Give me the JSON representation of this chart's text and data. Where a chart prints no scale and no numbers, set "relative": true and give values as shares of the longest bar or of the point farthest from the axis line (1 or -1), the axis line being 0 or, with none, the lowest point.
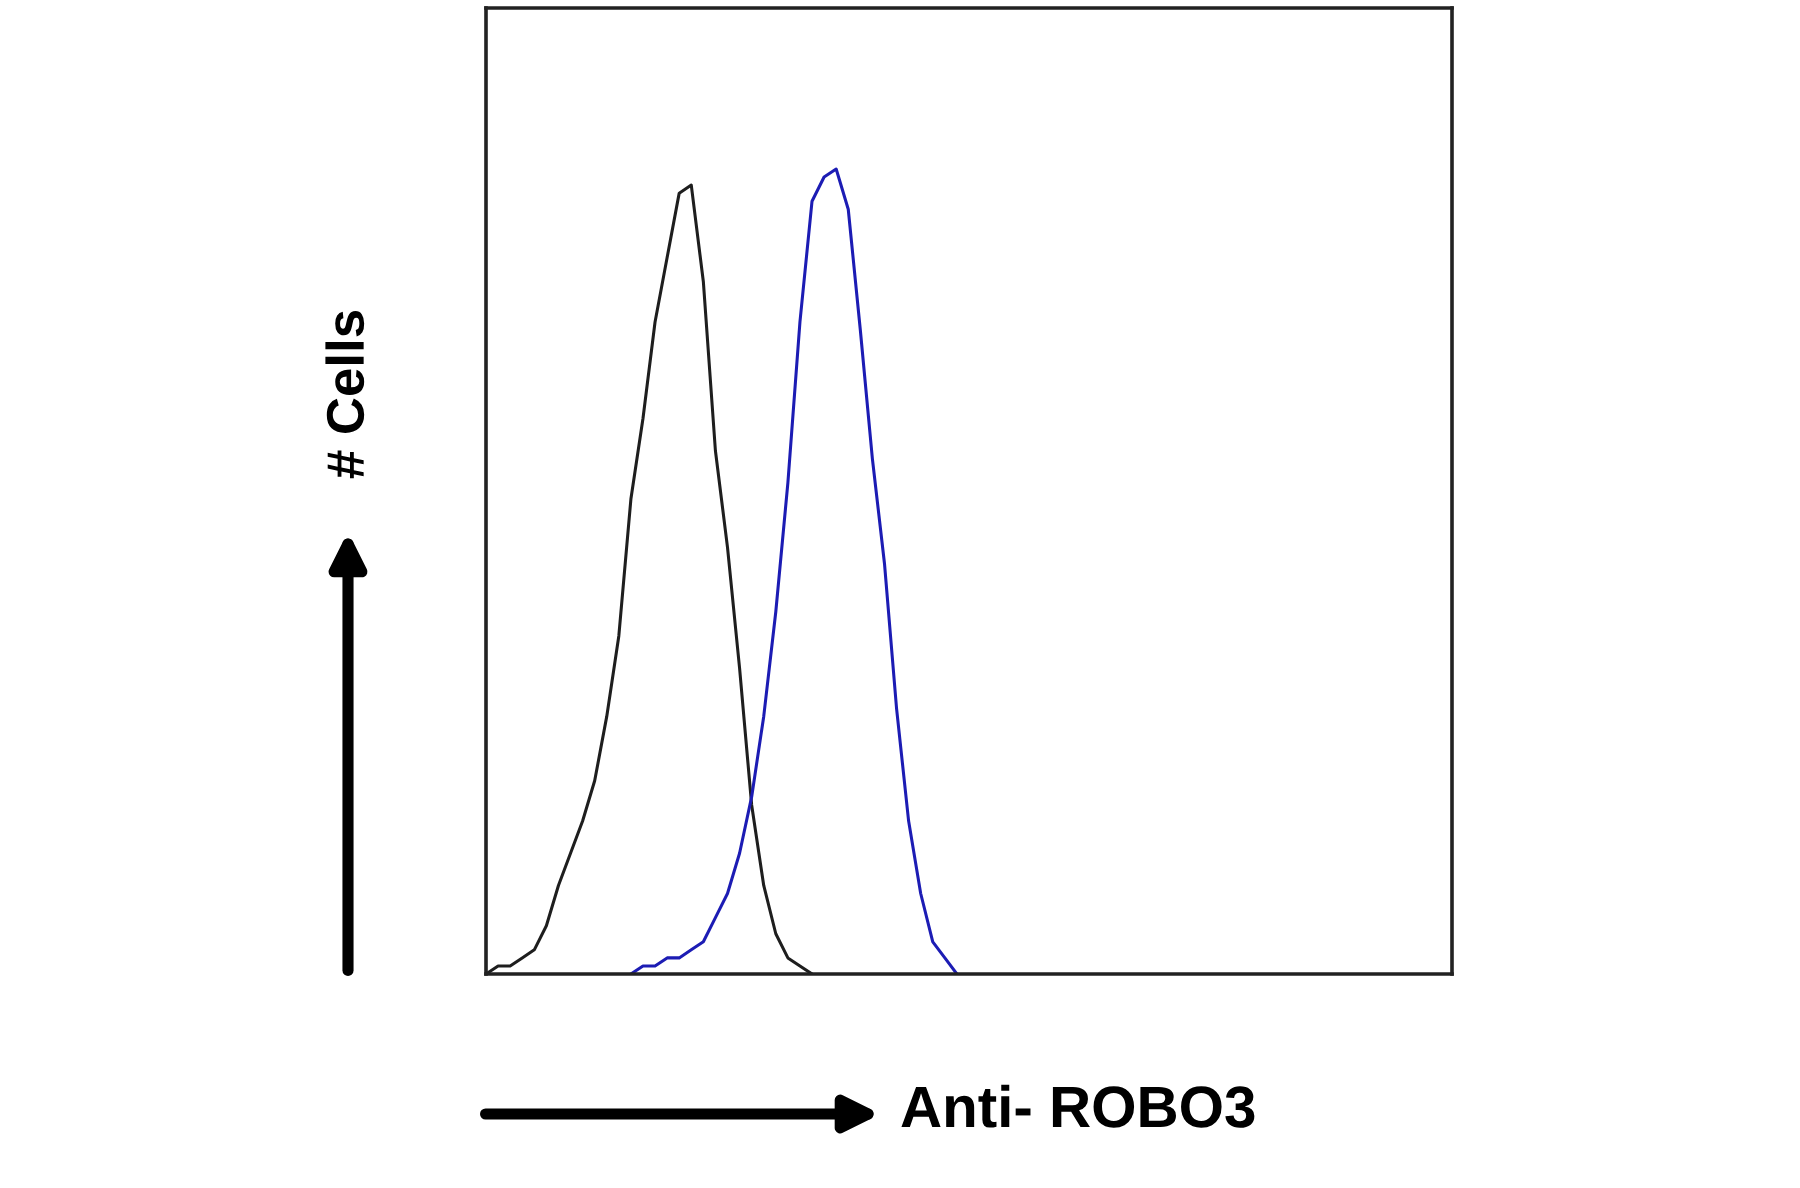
{
  "chart_data": {
    "type": "line",
    "relative": true,
    "xlabel": "Anti- ROBO3",
    "ylabel": "# Cells",
    "grid": false,
    "marker": "none",
    "line_style": "solid",
    "categories": [
      null,
      null,
      null,
      null,
      null,
      null,
      null,
      null,
      null,
      null,
      null,
      null,
      null,
      null,
      null,
      null,
      null,
      null,
      null,
      null,
      null,
      null,
      null,
      null,
      null,
      null,
      null,
      null,
      null,
      null,
      null,
      null,
      null,
      null,
      null,
      null,
      null,
      null,
      null,
      null,
      null,
      null,
      null,
      null,
      null,
      null,
      null,
      null,
      null,
      null,
      null,
      null,
      null,
      null,
      null,
      null,
      null,
      null,
      null,
      null,
      null,
      null,
      null,
      null,
      null,
      null,
      null,
      null,
      null,
      null,
      null,
      null,
      null,
      null,
      null,
      null,
      null,
      null,
      null,
      null,
      null
    ],
    "series": [
      {
        "color": "#1e1e1e",
        "values": [
          0.0,
          0.01,
          0.01,
          0.02,
          0.03,
          0.06,
          0.11,
          0.15,
          0.19,
          0.24,
          0.32,
          0.42,
          0.59,
          0.69,
          0.81,
          0.89,
          0.97,
          0.98,
          0.86,
          0.65,
          0.53,
          0.38,
          0.21,
          0.11,
          0.05,
          0.02,
          0.01,
          0.0,
          null,
          null,
          null,
          null,
          null,
          null,
          null,
          null,
          null,
          null,
          null,
          null,
          null,
          null,
          null,
          null,
          null,
          null,
          null,
          null,
          null,
          null,
          null,
          null,
          null,
          null,
          null,
          null,
          null,
          null,
          null,
          null,
          null,
          null,
          null,
          null,
          null,
          null,
          null,
          null,
          null,
          null,
          null,
          null,
          null,
          null,
          null,
          null,
          null,
          null,
          null,
          null,
          null
        ]
      },
      {
        "color": "#1c1cb4",
        "values": [
          null,
          null,
          null,
          null,
          null,
          null,
          null,
          null,
          null,
          null,
          null,
          null,
          0.0,
          0.01,
          0.01,
          0.02,
          0.02,
          0.03,
          0.04,
          0.07,
          0.1,
          0.15,
          0.22,
          0.32,
          0.45,
          0.61,
          0.81,
          0.96,
          0.99,
          1,
          0.95,
          0.8,
          0.64,
          0.51,
          0.33,
          0.19,
          0.1,
          0.04,
          0.02,
          0.0,
          null,
          null,
          null,
          null,
          null,
          null,
          null,
          null,
          null,
          null,
          null,
          null,
          null,
          null,
          null,
          null,
          null,
          null,
          null,
          null,
          null,
          null,
          null,
          null,
          null,
          null,
          null,
          null,
          null,
          null,
          null,
          null,
          null,
          null,
          null,
          null,
          null,
          null,
          null,
          null,
          null
        ]
      }
    ]
  }
}
